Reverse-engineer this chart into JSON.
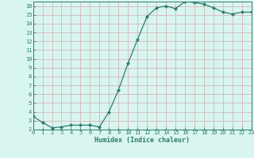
{
  "x": [
    0,
    1,
    2,
    3,
    4,
    5,
    6,
    7,
    8,
    9,
    10,
    11,
    12,
    13,
    14,
    15,
    16,
    17,
    18,
    19,
    20,
    21,
    22,
    23
  ],
  "y": [
    3.5,
    2.8,
    2.2,
    2.3,
    2.5,
    2.5,
    2.5,
    2.3,
    4.0,
    6.5,
    9.5,
    12.2,
    14.8,
    15.8,
    16.0,
    15.7,
    16.5,
    16.4,
    16.2,
    15.8,
    15.3,
    15.1,
    15.3,
    15.3
  ],
  "xlabel": "Humidex (Indice chaleur)",
  "line_color": "#2e7d6e",
  "marker": "D",
  "marker_size": 2,
  "bg_color": "#d9f5f0",
  "grid_color": "#d4b8b8",
  "axis_color": "#2e7d6e",
  "xlim": [
    0,
    23
  ],
  "ylim": [
    2,
    16.5
  ],
  "yticks": [
    2,
    3,
    4,
    5,
    6,
    7,
    8,
    9,
    10,
    11,
    12,
    13,
    14,
    15,
    16
  ],
  "xticks": [
    0,
    1,
    2,
    3,
    4,
    5,
    6,
    7,
    8,
    9,
    10,
    11,
    12,
    13,
    14,
    15,
    16,
    17,
    18,
    19,
    20,
    21,
    22,
    23
  ],
  "tick_fontsize": 5.0,
  "xlabel_fontsize": 6.0
}
